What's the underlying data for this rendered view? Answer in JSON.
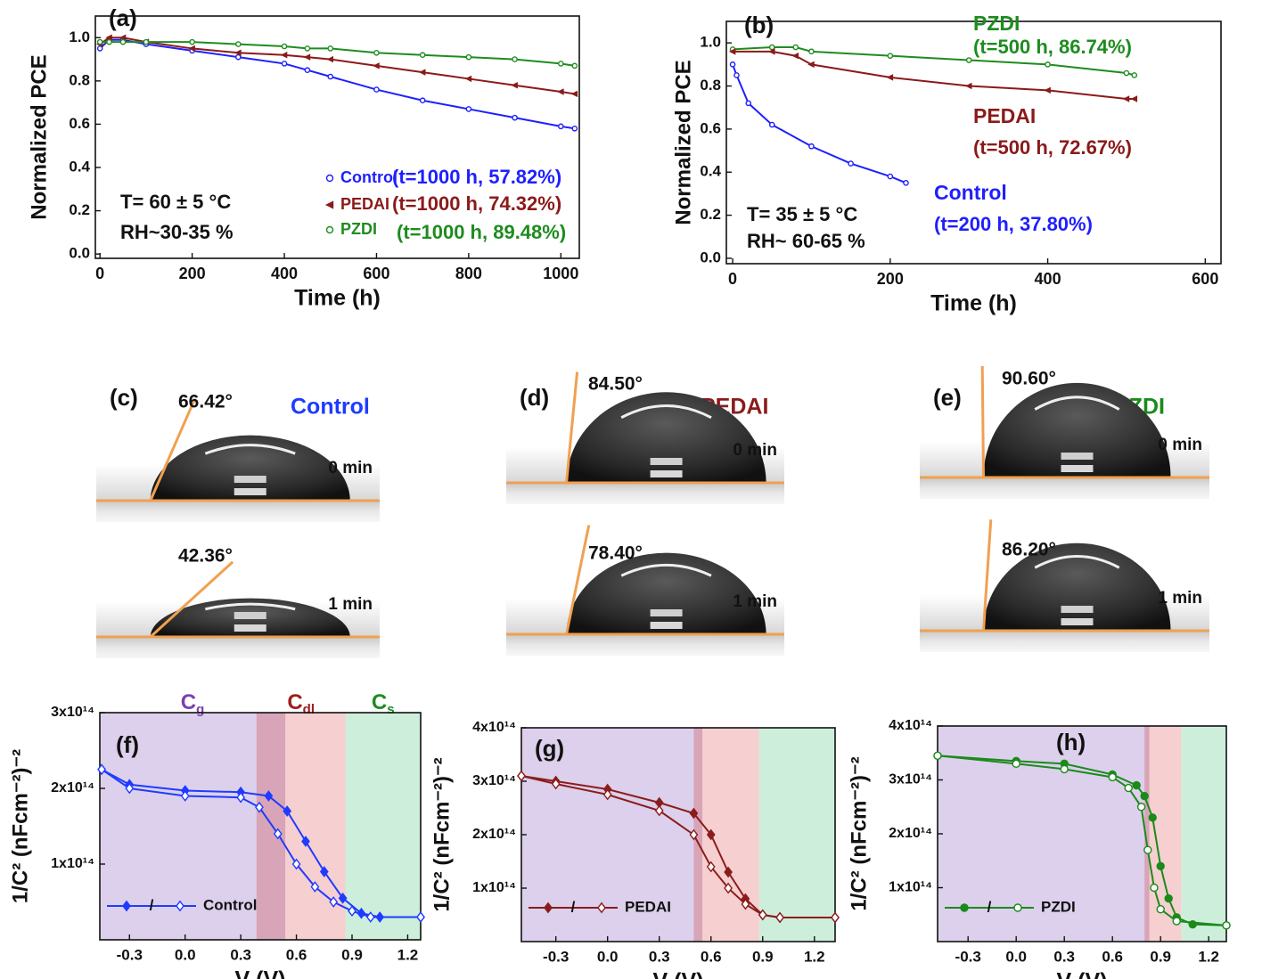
{
  "chart_data": [
    {
      "type": "line",
      "panel_label": "(a)",
      "xlabel": "Time (h)",
      "ylabel": "Normalized PCE",
      "xlim": [
        -10,
        1040
      ],
      "xticks": [
        0,
        200,
        400,
        600,
        800,
        1000
      ],
      "ylim": [
        -0.02,
        1.1
      ],
      "yticks": [
        {
          "value": 0,
          "label": "0.0"
        },
        0.2,
        0.4,
        0.6,
        0.8,
        {
          "value": 1,
          "label": "1.0"
        }
      ],
      "legend": true,
      "series": [
        {
          "name": "Control",
          "color": "#1f1fff",
          "marker": "circle",
          "filled": false,
          "x": [
            0,
            20,
            50,
            100,
            200,
            300,
            400,
            450,
            500,
            600,
            700,
            800,
            900,
            1000,
            1030
          ],
          "values": [
            0.95,
            0.99,
            0.99,
            0.97,
            0.94,
            0.91,
            0.88,
            0.85,
            0.82,
            0.76,
            0.71,
            0.67,
            0.63,
            0.59,
            0.58
          ]
        },
        {
          "name": "PEDAI",
          "color": "#8b1a1a",
          "marker": "triangle",
          "filled": true,
          "x": [
            0,
            20,
            50,
            100,
            200,
            300,
            400,
            450,
            500,
            600,
            700,
            800,
            900,
            1000,
            1030
          ],
          "values": [
            0.97,
            1.0,
            1.0,
            0.98,
            0.95,
            0.93,
            0.92,
            0.91,
            0.9,
            0.87,
            0.84,
            0.81,
            0.78,
            0.75,
            0.74
          ]
        },
        {
          "name": "PZDI",
          "color": "#1e8c1e",
          "marker": "circle",
          "filled": false,
          "x": [
            0,
            20,
            50,
            100,
            200,
            300,
            400,
            450,
            500,
            600,
            700,
            800,
            900,
            1000,
            1030
          ],
          "values": [
            0.98,
            0.98,
            0.98,
            0.98,
            0.98,
            0.97,
            0.96,
            0.95,
            0.95,
            0.93,
            0.92,
            0.91,
            0.9,
            0.88,
            0.87
          ]
        }
      ],
      "annotations": [
        {
          "text": "(t=1000 h, 57.82%)",
          "color": "#1f1fff"
        },
        {
          "text": "(t=1000 h, 74.32%)",
          "color": "#8b1a1a"
        },
        {
          "text": "(t=1000 h, 89.48%)",
          "color": "#1e8c1e"
        },
        {
          "text": "T= 60 ± 5 °C",
          "color": "#111111"
        },
        {
          "text": "RH~30-35 %",
          "color": "#111111"
        }
      ]
    },
    {
      "type": "line",
      "panel_label": "(b)",
      "xlabel": "Time (h)",
      "ylabel": "Normalized PCE",
      "xlim": [
        -8,
        620
      ],
      "xticks": [
        0,
        200,
        400,
        600
      ],
      "ylim": [
        -0.025,
        1.1
      ],
      "yticks": [
        {
          "value": 0,
          "label": "0.0"
        },
        0.2,
        0.4,
        0.6,
        0.8,
        {
          "value": 1,
          "label": "1.0"
        }
      ],
      "legend": false,
      "series": [
        {
          "name": "PZDI",
          "color": "#1e8c1e",
          "marker": "circle",
          "filled": false,
          "x": [
            0,
            50,
            80,
            100,
            200,
            300,
            400,
            500,
            510
          ],
          "values": [
            0.97,
            0.98,
            0.98,
            0.96,
            0.94,
            0.92,
            0.9,
            0.86,
            0.85
          ]
        },
        {
          "name": "PEDAI",
          "color": "#8b1a1a",
          "marker": "triangle",
          "filled": true,
          "x": [
            0,
            50,
            80,
            100,
            200,
            300,
            400,
            500,
            510
          ],
          "values": [
            0.96,
            0.96,
            0.94,
            0.9,
            0.84,
            0.8,
            0.78,
            0.74,
            0.74
          ]
        },
        {
          "name": "Control",
          "color": "#1f1fff",
          "marker": "circle",
          "filled": false,
          "x": [
            0,
            5,
            20,
            50,
            100,
            150,
            200,
            220
          ],
          "values": [
            0.9,
            0.85,
            0.72,
            0.62,
            0.52,
            0.44,
            0.38,
            0.35
          ]
        }
      ],
      "annotations": [
        {
          "text": "(t=500 h, 86.74%)",
          "color": "#1e8c1e"
        },
        {
          "text": "(t=500 h, 72.67%)",
          "color": "#8b1a1a"
        },
        {
          "text": "(t=200 h, 37.80%)",
          "color": "#1f1fff"
        },
        {
          "text": "T= 35 ± 5 °C",
          "color": "#111111"
        },
        {
          "text": "RH~ 60-65 %",
          "color": "#111111"
        }
      ]
    },
    {
      "type": "line",
      "panel_label": "(f)",
      "xlabel": "V (V)",
      "ylabel": "1/C² (nFcm⁻²)⁻²",
      "xlim": [
        -0.46,
        1.27
      ],
      "xticks": [
        -0.3,
        {
          "value": 0,
          "label": "0.0"
        },
        0.3,
        0.6,
        0.9,
        1.2
      ],
      "ylim": [
        0,
        300000000000000.0
      ],
      "yticks": [
        {
          "value": 100000000000000.0,
          "label": "1x10¹⁴"
        },
        {
          "value": 200000000000000.0,
          "label": "2x10¹⁴"
        },
        {
          "value": 300000000000000.0,
          "label": "3x10¹⁴"
        }
      ],
      "legend_label": "Control",
      "legend_separator": "/",
      "regions": [
        {
          "from": -0.46,
          "to": 0.54,
          "color": "#dcd0ec",
          "label": "C",
          "sub": "g",
          "label_color": "#7b3fb0"
        },
        {
          "from": 0.385,
          "to": 0.864,
          "color": "#f6cfd0",
          "label": "C",
          "sub": "dl",
          "label_color": "#a01c1c"
        },
        {
          "from": 0.385,
          "to": 0.54,
          "color": "#d8a4b8"
        },
        {
          "from": 0.864,
          "to": 1.27,
          "color": "#cdeedb",
          "label": "C",
          "sub": "s",
          "label_color": "#1e8c1e"
        }
      ],
      "series": [
        {
          "color": "#1f3bff",
          "marker": "diamond",
          "filled": true,
          "x": [
            -0.45,
            -0.3,
            0,
            0.3,
            0.45,
            0.55,
            0.65,
            0.75,
            0.85,
            0.95,
            1.05,
            1.27
          ],
          "values": [
            225000000000000.0,
            205000000000000.0,
            197000000000000.0,
            195000000000000.0,
            190000000000000.0,
            170000000000000.0,
            130000000000000.0,
            90000000000000.0,
            55000000000000.0,
            35000000000000.0,
            30000000000000.0,
            30000000000000.0
          ]
        },
        {
          "color": "#1f3bff",
          "marker": "diamond",
          "filled": false,
          "x": [
            -0.45,
            -0.3,
            0,
            0.3,
            0.4,
            0.5,
            0.6,
            0.7,
            0.8,
            0.9,
            1.0,
            1.27
          ],
          "values": [
            225000000000000.0,
            200000000000000.0,
            190000000000000.0,
            188000000000000.0,
            175000000000000.0,
            140000000000000.0,
            100000000000000.0,
            70000000000000.0,
            50000000000000.0,
            38000000000000.0,
            30000000000000.0,
            30000000000000.0
          ]
        }
      ]
    },
    {
      "type": "line",
      "panel_label": "(g)",
      "xlabel": "V (V)",
      "ylabel": "1/C² (nFcm⁻²)⁻²",
      "xlim": [
        -0.5,
        1.32
      ],
      "xticks": [
        -0.3,
        {
          "value": 0,
          "label": "0.0"
        },
        0.3,
        0.6,
        0.9,
        1.2
      ],
      "ylim": [
        0,
        400000000000000.0
      ],
      "yticks": [
        {
          "value": 100000000000000.0,
          "label": "1x10¹⁴"
        },
        {
          "value": 200000000000000.0,
          "label": "2x10¹⁴"
        },
        {
          "value": 300000000000000.0,
          "label": "3x10¹⁴"
        },
        {
          "value": 400000000000000.0,
          "label": "4x10¹⁴"
        }
      ],
      "legend_label": "PEDAI",
      "legend_separator": "/",
      "regions": [
        {
          "from": -0.5,
          "to": 0.55,
          "color": "#dcd0ec"
        },
        {
          "from": 0.5,
          "to": 0.88,
          "color": "#f6cfd0"
        },
        {
          "from": 0.5,
          "to": 0.55,
          "color": "#d8a4b8"
        },
        {
          "from": 0.88,
          "to": 1.32,
          "color": "#cdeedb"
        }
      ],
      "series": [
        {
          "color": "#8b1c1c",
          "marker": "diamond",
          "filled": true,
          "x": [
            -0.5,
            -0.3,
            0,
            0.3,
            0.5,
            0.6,
            0.7,
            0.8,
            0.9,
            1.0,
            1.32
          ],
          "values": [
            310000000000000.0,
            300000000000000.0,
            285000000000000.0,
            260000000000000.0,
            240000000000000.0,
            200000000000000.0,
            130000000000000.0,
            80000000000000.0,
            50000000000000.0,
            45000000000000.0,
            45000000000000.0
          ]
        },
        {
          "color": "#8b1c1c",
          "marker": "diamond",
          "filled": false,
          "x": [
            -0.5,
            -0.3,
            0,
            0.3,
            0.5,
            0.6,
            0.7,
            0.8,
            0.9,
            1.0,
            1.32
          ],
          "values": [
            310000000000000.0,
            295000000000000.0,
            275000000000000.0,
            245000000000000.0,
            200000000000000.0,
            140000000000000.0,
            100000000000000.0,
            70000000000000.0,
            50000000000000.0,
            45000000000000.0,
            45000000000000.0
          ]
        }
      ]
    },
    {
      "type": "line",
      "panel_label": "(h)",
      "xlabel": "V (V)",
      "ylabel": "1/C² (nFcm⁻²)⁻²",
      "xlim": [
        -0.49,
        1.31
      ],
      "xticks": [
        -0.3,
        {
          "value": 0,
          "label": "0.0"
        },
        0.3,
        0.6,
        0.9,
        1.2
      ],
      "ylim": [
        0,
        400000000000000.0
      ],
      "yticks": [
        {
          "value": 100000000000000.0,
          "label": "1x10¹⁴"
        },
        {
          "value": 200000000000000.0,
          "label": "2x10¹⁴"
        },
        {
          "value": 300000000000000.0,
          "label": "3x10¹⁴"
        },
        {
          "value": 400000000000000.0,
          "label": "4x10¹⁴"
        }
      ],
      "legend_label": "PZDI",
      "legend_separator": "/",
      "regions": [
        {
          "from": -0.49,
          "to": 0.83,
          "color": "#dcd0ec"
        },
        {
          "from": 0.8,
          "to": 1.03,
          "color": "#f6cfd0"
        },
        {
          "from": 0.8,
          "to": 0.83,
          "color": "#d8a4b8"
        },
        {
          "from": 1.03,
          "to": 1.31,
          "color": "#cdeedb"
        }
      ],
      "series": [
        {
          "color": "#1a8a1a",
          "marker": "circle",
          "filled": true,
          "x": [
            -0.49,
            0,
            0.3,
            0.6,
            0.75,
            0.8,
            0.85,
            0.9,
            0.95,
            1.0,
            1.1,
            1.31
          ],
          "values": [
            345000000000000.0,
            335000000000000.0,
            330000000000000.0,
            310000000000000.0,
            290000000000000.0,
            270000000000000.0,
            230000000000000.0,
            140000000000000.0,
            80000000000000.0,
            45000000000000.0,
            32000000000000.0,
            30000000000000.0
          ]
        },
        {
          "color": "#1a8a1a",
          "marker": "circle",
          "filled": false,
          "x": [
            -0.49,
            0,
            0.3,
            0.6,
            0.7,
            0.78,
            0.82,
            0.86,
            0.9,
            1.0,
            1.31
          ],
          "values": [
            345000000000000.0,
            330000000000000.0,
            320000000000000.0,
            305000000000000.0,
            285000000000000.0,
            250000000000000.0,
            170000000000000.0,
            100000000000000.0,
            60000000000000.0,
            38000000000000.0,
            30000000000000.0
          ]
        }
      ]
    }
  ],
  "photos": [
    {
      "label": "(c)",
      "sample": "Control",
      "color": "#1f3bff",
      "shots": [
        {
          "angle": "66.42°",
          "time": "0 min"
        },
        {
          "angle": "42.36°",
          "time": "1 min"
        }
      ]
    },
    {
      "label": "(d)",
      "sample": "PEDAI",
      "color": "#8b1c1c",
      "shots": [
        {
          "angle": "84.50°",
          "time": "0 min"
        },
        {
          "angle": "78.40°",
          "time": "1 min"
        }
      ]
    },
    {
      "label": "(e)",
      "sample": "PZDI",
      "color": "#1a8a1a",
      "shots": [
        {
          "angle": "90.60°",
          "time": "0 min"
        },
        {
          "angle": "86.20°",
          "time": "1 min"
        }
      ]
    }
  ]
}
